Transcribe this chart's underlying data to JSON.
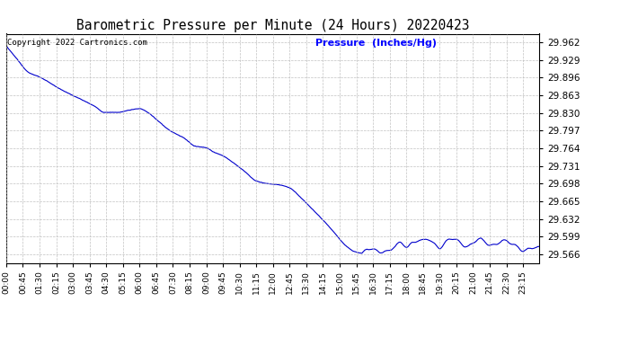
{
  "title": "Barometric Pressure per Minute (24 Hours) 20220423",
  "copyright_text": "Copyright 2022 Cartronics.com",
  "ylabel": "Pressure  (Inches/Hg)",
  "ylabel_color": "#0000FF",
  "copyright_color": "#000000",
  "title_color": "#000000",
  "line_color": "#0000CC",
  "background_color": "#FFFFFF",
  "grid_color": "#AAAAAA",
  "yticks": [
    29.566,
    29.599,
    29.632,
    29.665,
    29.698,
    29.731,
    29.764,
    29.797,
    29.83,
    29.863,
    29.896,
    29.929,
    29.962
  ],
  "y_min": 29.55,
  "y_max": 29.978,
  "num_minutes": 1440,
  "x_tick_positions": [
    0,
    45,
    90,
    135,
    180,
    225,
    270,
    315,
    360,
    405,
    450,
    495,
    540,
    585,
    630,
    675,
    720,
    765,
    810,
    855,
    900,
    945,
    990,
    1035,
    1080,
    1125,
    1170,
    1215,
    1260,
    1305,
    1350,
    1395
  ],
  "x_tick_labels": [
    "00:00",
    "00:45",
    "01:30",
    "02:15",
    "03:00",
    "03:45",
    "04:30",
    "05:15",
    "06:00",
    "06:45",
    "07:30",
    "08:15",
    "09:00",
    "09:45",
    "10:30",
    "11:15",
    "12:00",
    "12:45",
    "13:30",
    "14:15",
    "15:00",
    "15:45",
    "16:30",
    "17:15",
    "18:00",
    "18:45",
    "19:30",
    "20:15",
    "21:00",
    "21:45",
    "22:30",
    "23:15"
  ]
}
